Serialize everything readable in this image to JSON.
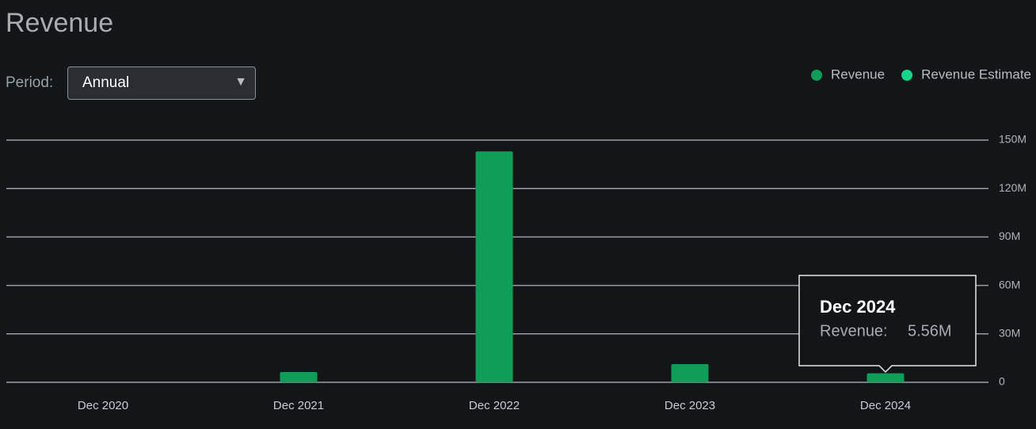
{
  "header": {
    "title": "Revenue"
  },
  "controls": {
    "period_label": "Period:",
    "period_value": "Annual"
  },
  "chart_data": {
    "type": "bar",
    "categories": [
      "Dec 2020",
      "Dec 2021",
      "Dec 2022",
      "Dec 2023",
      "Dec 2024"
    ],
    "series": [
      {
        "name": "Revenue",
        "color": "#0f9d58",
        "values": [
          null,
          6.4,
          143,
          11.3,
          5.56
        ],
        "value_labels": [
          null,
          null,
          null,
          null,
          "5.56M"
        ]
      },
      {
        "name": "Revenue Estimate",
        "color": "#17d48a",
        "values": [
          null,
          null,
          null,
          null,
          null
        ]
      }
    ],
    "ylim": [
      0,
      150
    ],
    "yticks": [
      0,
      {
        "value": 30,
        "label": "30M"
      },
      {
        "value": 60,
        "label": "60M"
      },
      {
        "value": 90,
        "label": "90M"
      },
      {
        "value": 120,
        "label": "120M"
      },
      {
        "value": 150,
        "label": "150M"
      }
    ],
    "grid": true,
    "legend": "top-right",
    "tooltip": {
      "category_index": 4,
      "label": "Revenue:"
    }
  }
}
